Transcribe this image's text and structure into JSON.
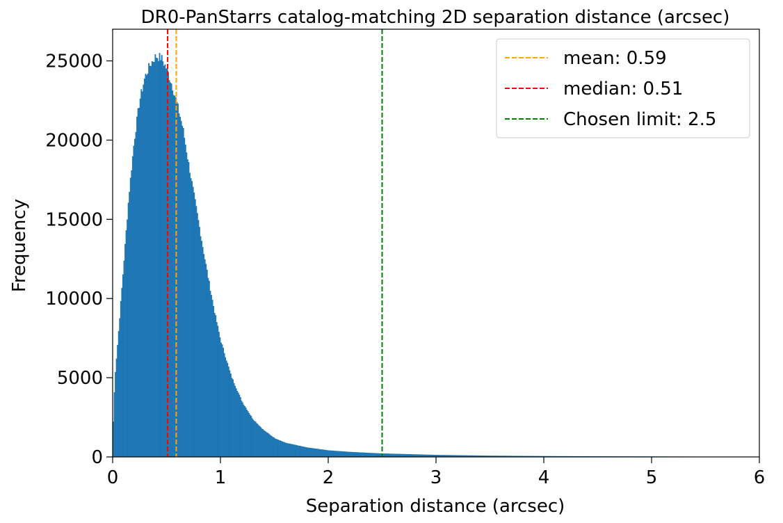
{
  "chart_data": {
    "type": "bar",
    "title": "DR0-PanStarrs catalog-matching 2D separation distance (arcsec)",
    "xlabel": "Separation distance (arcsec)",
    "ylabel": "Frequency",
    "xlim": [
      0,
      6
    ],
    "ylim": [
      0,
      27000
    ],
    "xticks": [
      "0",
      "1",
      "2",
      "3",
      "4",
      "5",
      "6"
    ],
    "yticks": [
      "0",
      "5000",
      "10000",
      "15000",
      "20000",
      "25000"
    ],
    "bar_color": "#1f77b4",
    "bin_width": 0.01,
    "histogram": {
      "x": [
        0.0,
        0.02,
        0.05,
        0.1,
        0.15,
        0.2,
        0.25,
        0.3,
        0.35,
        0.4,
        0.45,
        0.5,
        0.55,
        0.6,
        0.65,
        0.7,
        0.75,
        0.8,
        0.85,
        0.9,
        0.95,
        1.0,
        1.1,
        1.2,
        1.3,
        1.4,
        1.5,
        1.6,
        1.8,
        2.0,
        2.2,
        2.5,
        3.0,
        3.5,
        4.0,
        4.5,
        5.0,
        5.5,
        6.0
      ],
      "y": [
        1300,
        5000,
        7500,
        12000,
        16500,
        20000,
        22500,
        24000,
        24800,
        25300,
        25200,
        24500,
        23500,
        22200,
        20800,
        18700,
        16700,
        14700,
        12700,
        10800,
        9000,
        7400,
        5100,
        3500,
        2400,
        1700,
        1200,
        900,
        600,
        420,
        320,
        220,
        130,
        80,
        55,
        40,
        30,
        22,
        15
      ]
    },
    "legend": {
      "position": "upper right",
      "entries": [
        {
          "label": "mean: 0.59",
          "color": "#ffa500",
          "x": 0.59
        },
        {
          "label": "median: 0.51",
          "color": "#ff0000",
          "x": 0.51
        },
        {
          "label": "Chosen limit: 2.5",
          "color": "#008000",
          "x": 2.5
        }
      ]
    },
    "grid": false
  }
}
